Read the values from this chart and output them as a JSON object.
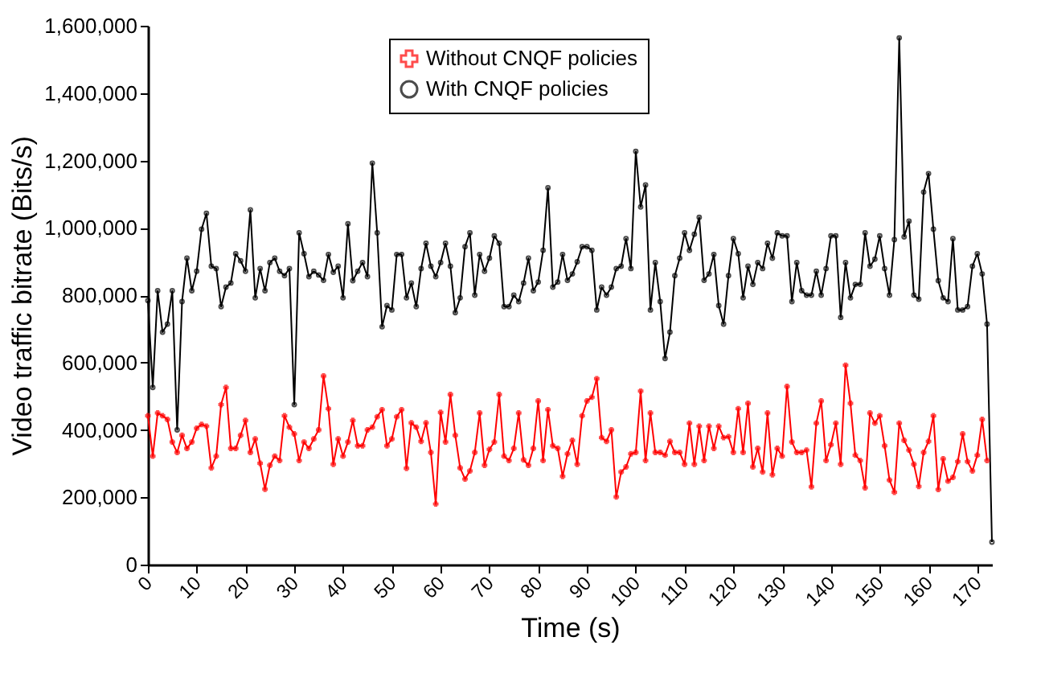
{
  "chart_data": {
    "type": "line",
    "xlabel": "Time (s)",
    "ylabel": "Video traffic bitrate (Bits/s)",
    "x": [
      0,
      1,
      2,
      3,
      4,
      5,
      6,
      7,
      8,
      9,
      10,
      11,
      12,
      13,
      14,
      15,
      16,
      17,
      18,
      19,
      20,
      21,
      22,
      23,
      24,
      25,
      26,
      27,
      28,
      29,
      30,
      31,
      32,
      33,
      34,
      35,
      36,
      37,
      38,
      39,
      40,
      41,
      42,
      43,
      44,
      45,
      46,
      47,
      48,
      49,
      50,
      51,
      52,
      53,
      54,
      55,
      56,
      57,
      58,
      59,
      60,
      61,
      62,
      63,
      64,
      65,
      66,
      67,
      68,
      69,
      70,
      71,
      72,
      73,
      74,
      75,
      76,
      77,
      78,
      79,
      80,
      81,
      82,
      83,
      84,
      85,
      86,
      87,
      88,
      89,
      90,
      91,
      92,
      93,
      94,
      95,
      96,
      97,
      98,
      99,
      100,
      101,
      102,
      103,
      104,
      105,
      106,
      107,
      108,
      109,
      110,
      111,
      112,
      113,
      114,
      115,
      116,
      117,
      118,
      119,
      120,
      121,
      122,
      123,
      124,
      125,
      126,
      127,
      128,
      129,
      130,
      131,
      132,
      133,
      134,
      135,
      136,
      137,
      138,
      139,
      140,
      141,
      142,
      143,
      144,
      145,
      146,
      147,
      148,
      149,
      150,
      151,
      152,
      153,
      154,
      155,
      156,
      157,
      158,
      159,
      160,
      161,
      162,
      163,
      164,
      165,
      166,
      167,
      168,
      169,
      170,
      171,
      172,
      173
    ],
    "xlim": [
      0,
      173
    ],
    "xticks": [
      0,
      10,
      20,
      30,
      40,
      50,
      60,
      70,
      80,
      90,
      100,
      110,
      120,
      130,
      140,
      150,
      160,
      170
    ],
    "ylim": [
      0,
      1600000
    ],
    "yticks": [
      0,
      {
        "value": 200000,
        "label": "200,000"
      },
      {
        "value": 400000,
        "label": "400,000"
      },
      {
        "value": 600000,
        "label": "600,000"
      },
      {
        "value": 800000,
        "label": "800,000"
      },
      {
        "value": 1000000,
        "label": "1,000,000"
      },
      {
        "value": 1200000,
        "label": "1,200,000"
      },
      {
        "value": 1400000,
        "label": "1,400,000"
      },
      {
        "value": 1600000,
        "label": "1,600,000"
      }
    ],
    "grid": false,
    "legend": "top",
    "line_style": "solid",
    "series": [
      {
        "name": "Without CNQF policies",
        "color": "#ff0000",
        "marker": "cross",
        "values": [
          442000,
          322000,
          450000,
          442000,
          431000,
          364000,
          333000,
          384000,
          345000,
          364000,
          405000,
          416000,
          411000,
          287000,
          322000,
          475000,
          526000,
          345000,
          345000,
          384000,
          428000,
          333000,
          373000,
          301000,
          224000,
          295000,
          322000,
          309000,
          442000,
          408000,
          388000,
          309000,
          364000,
          345000,
          373000,
          400000,
          560000,
          463000,
          298000,
          373000,
          322000,
          364000,
          428000,
          353000,
          353000,
          400000,
          408000,
          439000,
          460000,
          353000,
          373000,
          439000,
          460000,
          286000,
          421000,
          408000,
          366000,
          421000,
          333000,
          180000,
          452000,
          364000,
          505000,
          384000,
          287000,
          254000,
          278000,
          333000,
          450000,
          295000,
          342000,
          364000,
          505000,
          322000,
          309000,
          345000,
          450000,
          311000,
          295000,
          345000,
          486000,
          309000,
          460000,
          353000,
          345000,
          262000,
          329000,
          369000,
          298000,
          442000,
          486000,
          497000,
          552000,
          377000,
          366000,
          400000,
          201000,
          275000,
          290000,
          329000,
          333000,
          515000,
          309000,
          450000,
          333000,
          333000,
          325000,
          366000,
          333000,
          333000,
          298000,
          420000,
          298000,
          411000,
          309000,
          411000,
          345000,
          411000,
          377000,
          380000,
          333000,
          463000,
          333000,
          479000,
          290000,
          345000,
          275000,
          450000,
          267000,
          345000,
          322000,
          529000,
          364000,
          333000,
          333000,
          340000,
          231000,
          420000,
          486000,
          309000,
          356000,
          420000,
          298000,
          592000,
          479000,
          325000,
          309000,
          228000,
          450000,
          420000,
          442000,
          353000,
          251000,
          215000,
          420000,
          369000,
          340000,
          298000,
          232000,
          333000,
          366000,
          442000,
          223000,
          314000,
          248000,
          259000,
          306000,
          388000,
          306000,
          278000,
          325000,
          431000,
          309000,
          null
        ]
      },
      {
        "name": "With CNQF policies",
        "color": "#000000",
        "marker": "circle",
        "values": [
          784000,
          526000,
          813000,
          690000,
          714000,
          813000,
          400000,
          781000,
          910000,
          813000,
          871000,
          996000,
          1043000,
          886000,
          879000,
          766000,
          824000,
          836000,
          923000,
          902000,
          871000,
          1053000,
          792000,
          879000,
          813000,
          897000,
          910000,
          871000,
          858000,
          879000,
          475000,
          985000,
          923000,
          855000,
          871000,
          860000,
          844000,
          921000,
          868000,
          886000,
          792000,
          1012000,
          843000,
          871000,
          897000,
          855000,
          1192000,
          985000,
          706000,
          769000,
          756000,
          921000,
          921000,
          792000,
          836000,
          766000,
          879000,
          954000,
          886000,
          855000,
          897000,
          954000,
          886000,
          748000,
          792000,
          944000,
          985000,
          800000,
          921000,
          871000,
          910000,
          976000,
          954000,
          766000,
          766000,
          800000,
          781000,
          836000,
          910000,
          813000,
          839000,
          933000,
          1119000,
          824000,
          839000,
          921000,
          844000,
          863000,
          899000,
          944000,
          944000,
          933000,
          756000,
          824000,
          800000,
          824000,
          879000,
          886000,
          968000,
          879000,
          1227000,
          1062000,
          1127000,
          756000,
          897000,
          781000,
          612000,
          690000,
          858000,
          910000,
          985000,
          933000,
          981000,
          1031000,
          844000,
          863000,
          921000,
          769000,
          714000,
          858000,
          968000,
          923000,
          792000,
          886000,
          832000,
          897000,
          879000,
          954000,
          910000,
          985000,
          976000,
          976000,
          781000,
          897000,
          813000,
          800000,
          800000,
          871000,
          800000,
          879000,
          976000,
          976000,
          734000,
          897000,
          792000,
          832000,
          832000,
          985000,
          886000,
          907000,
          976000,
          879000,
          800000,
          965000,
          1564000,
          973000,
          1020000,
          800000,
          788000,
          1106000,
          1161000,
          996000,
          843000,
          792000,
          781000,
          968000,
          756000,
          756000,
          766000,
          886000,
          923000,
          863000,
          714000,
          67000
        ]
      }
    ]
  }
}
